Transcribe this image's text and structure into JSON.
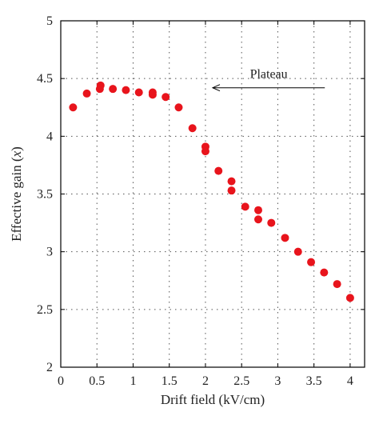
{
  "chart_data": {
    "type": "scatter",
    "xlabel": "Drift field (kV/cm)",
    "ylabel": "Effective gain (x)",
    "xlim": [
      0,
      4.2
    ],
    "ylim": [
      2,
      5
    ],
    "xticks": [
      0,
      0.5,
      1,
      1.5,
      2,
      2.5,
      3,
      3.5,
      4
    ],
    "xtick_labels": [
      "0",
      "0.5",
      "1",
      "1.5",
      "2",
      "2.5",
      "3",
      "3.5",
      "4"
    ],
    "yticks": [
      2,
      2.5,
      3,
      3.5,
      4,
      4.5,
      5
    ],
    "ytick_labels": [
      "2",
      "2.5",
      "3",
      "3.5",
      "4",
      "4.5",
      "5"
    ],
    "grid": true,
    "marker_color": "#e8141c",
    "series": [
      {
        "points": [
          [
            0.17,
            4.25
          ],
          [
            0.36,
            4.37
          ],
          [
            0.54,
            4.41
          ],
          [
            0.55,
            4.44
          ],
          [
            0.72,
            4.41
          ],
          [
            0.9,
            4.4
          ],
          [
            1.08,
            4.38
          ],
          [
            1.27,
            4.36
          ],
          [
            1.27,
            4.38
          ],
          [
            1.45,
            4.34
          ],
          [
            1.63,
            4.25
          ],
          [
            1.82,
            4.07
          ],
          [
            2.0,
            3.91
          ],
          [
            2.0,
            3.87
          ],
          [
            2.18,
            3.7
          ],
          [
            2.36,
            3.61
          ],
          [
            2.36,
            3.53
          ],
          [
            2.55,
            3.39
          ],
          [
            2.73,
            3.36
          ],
          [
            2.73,
            3.28
          ],
          [
            2.91,
            3.25
          ],
          [
            3.1,
            3.12
          ],
          [
            3.28,
            3.0
          ],
          [
            3.46,
            2.91
          ],
          [
            3.64,
            2.82
          ],
          [
            3.82,
            2.72
          ],
          [
            4.0,
            2.6
          ]
        ]
      }
    ],
    "annotation": {
      "text": "Plateau",
      "arrow_from": [
        3.65,
        4.42
      ],
      "arrow_to": [
        2.1,
        4.42
      ]
    }
  }
}
